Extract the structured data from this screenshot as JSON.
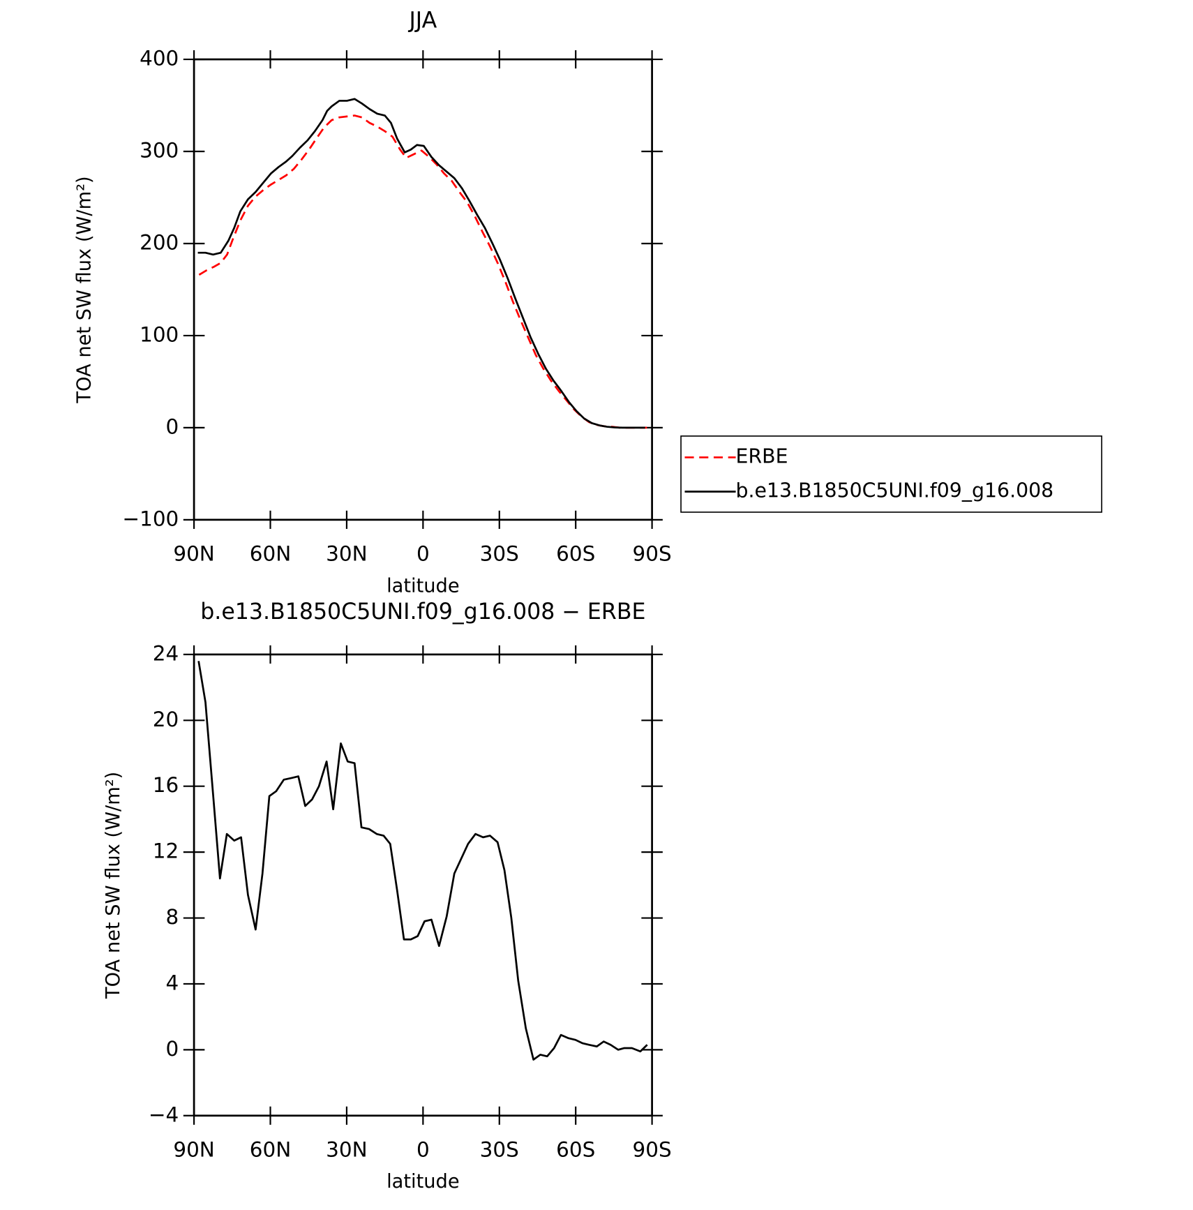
{
  "chart_data": [
    {
      "type": "line",
      "title": "JJA",
      "x_label": "latitude",
      "y_label": "TOA net SW flux (W/m²)",
      "xlim": [
        90,
        -90
      ],
      "ylim": [
        -100,
        400
      ],
      "xticks": [
        {
          "value": 90,
          "label": "90N"
        },
        {
          "value": 60,
          "label": "60N"
        },
        {
          "value": 30,
          "label": "30N"
        },
        0,
        {
          "value": -30,
          "label": "30S"
        },
        {
          "value": -60,
          "label": "60S"
        },
        {
          "value": -90,
          "label": "90S"
        }
      ],
      "yticks": [
        {
          "value": -100,
          "label": "−100"
        },
        0,
        100,
        200,
        300,
        400
      ],
      "legend": "outside-right",
      "series": [
        {
          "name": "ERBE",
          "color": "#ff0000",
          "line_style": "dashed",
          "x": [
            88,
            85,
            82,
            79.5,
            77,
            74.7,
            71.8,
            68.8,
            65.8,
            62.8,
            59.8,
            56.8,
            53.8,
            50.8,
            47.8,
            44.8,
            41.9,
            38.9,
            35.9,
            32.9,
            29.9,
            26.9,
            24,
            21,
            18,
            15,
            12,
            9,
            6.6,
            3.6,
            0.6,
            -2.4,
            -5.3,
            -8.3,
            -11.3,
            -14.3,
            -17.3,
            -20.3,
            -23.3,
            -26.3,
            -29.3,
            -32.3,
            -35.3,
            -38.3,
            -41.3,
            -44.3,
            -47.3,
            -50.3,
            -53.3,
            -56.3,
            -59.3,
            -62.3,
            -65.3,
            -68.3,
            -71.3,
            -74.3,
            -77.3,
            -80.3,
            -83.3,
            -86.3,
            -88
          ],
          "values": [
            166,
            171,
            175,
            179,
            188,
            205,
            225,
            241,
            251,
            258,
            264,
            269,
            274,
            281,
            291,
            302,
            314,
            326,
            334,
            337,
            338,
            339,
            337,
            331,
            327,
            322,
            316,
            302,
            293,
            297,
            301,
            294,
            286,
            276,
            268,
            256,
            245,
            230,
            213,
            197,
            179,
            159,
            137,
            117,
            98,
            79,
            64,
            51,
            40,
            30,
            20,
            12,
            6,
            3,
            1.5,
            1,
            0,
            0,
            0,
            0,
            0
          ]
        },
        {
          "name": "b.e13.B1850C5UNI.f09_g16.008",
          "color": "#000000",
          "line_style": "solid",
          "x": [
            88.5,
            85.5,
            82.5,
            79.5,
            76.5,
            74.2,
            71.8,
            68.8,
            65.8,
            62.8,
            59.8,
            56.8,
            53.8,
            51.4,
            48.4,
            45.4,
            42.5,
            39.5,
            37.7,
            35.9,
            32.9,
            29.9,
            26.9,
            24,
            21,
            18,
            15,
            12.6,
            10.2,
            7.2,
            4.8,
            2.4,
            -0.3,
            -3.3,
            -6.3,
            -9.3,
            -12.3,
            -15.3,
            -18.3,
            -21.3,
            -24.3,
            -27.3,
            -30.3,
            -33.3,
            -36.3,
            -39.3,
            -42.3,
            -45.3,
            -48.3,
            -51.3,
            -54.3,
            -57.3,
            -60.3,
            -63.3,
            -66.3,
            -69.3,
            -72.3,
            -75.3,
            -78.3,
            -81.3,
            -84.3,
            -87.3
          ],
          "values": [
            190,
            190,
            188,
            190,
            203,
            217,
            235,
            248,
            256,
            266,
            276,
            283,
            289,
            295,
            304,
            312,
            322,
            334,
            344,
            349,
            355,
            355,
            357,
            352,
            346,
            341,
            339,
            331,
            314,
            299,
            302,
            307,
            306,
            294,
            285,
            278,
            271,
            260,
            246,
            231,
            217,
            200,
            182,
            162,
            140,
            119,
            98,
            80,
            64,
            51,
            40,
            28,
            18,
            10,
            5,
            2.5,
            1,
            0.3,
            0,
            0,
            0,
            0
          ]
        }
      ]
    },
    {
      "type": "line",
      "title": "b.e13.B1850C5UNI.f09_g16.008 − ERBE",
      "x_label": "latitude",
      "y_label": "TOA net SW flux (W/m²)",
      "xlim": [
        90,
        -90
      ],
      "ylim": [
        -4,
        24
      ],
      "xticks": [
        {
          "value": 90,
          "label": "90N"
        },
        {
          "value": 60,
          "label": "60N"
        },
        {
          "value": 30,
          "label": "30N"
        },
        0,
        {
          "value": -30,
          "label": "30S"
        },
        {
          "value": -60,
          "label": "60S"
        },
        {
          "value": -90,
          "label": "90S"
        }
      ],
      "yticks": [
        {
          "value": -4,
          "label": "−4"
        },
        0,
        4,
        8,
        12,
        16,
        20,
        24
      ],
      "series": [
        {
          "color": "#000000",
          "line_style": "solid",
          "x": [
            88.2,
            85.5,
            82.5,
            79.8,
            77.1,
            74.2,
            71.5,
            68.8,
            65.8,
            63.1,
            60.4,
            57.7,
            54.7,
            51.7,
            49,
            46.3,
            43.6,
            40.9,
            37.9,
            35.3,
            32.3,
            29.6,
            26.9,
            24.2,
            21.2,
            18.2,
            15.5,
            12.9,
            10.2,
            7.5,
            4.8,
            2.1,
            -0.6,
            -3.3,
            -6.3,
            -9.3,
            -12.3,
            -15,
            -17.7,
            -20.6,
            -23.6,
            -26.3,
            -29.3,
            -32,
            -34.7,
            -37.4,
            -40.4,
            -43.4,
            -46.1,
            -48.8,
            -51.5,
            -54.2,
            -57.2,
            -59.9,
            -62.6,
            -65.3,
            -68.3,
            -71,
            -73.7,
            -76.7,
            -79.1,
            -82.1,
            -85.4,
            -88.1
          ],
          "values": [
            23.6,
            21.1,
            15.5,
            10.4,
            13.1,
            12.7,
            12.9,
            9.4,
            7.3,
            10.7,
            15.4,
            15.7,
            16.4,
            16.5,
            16.6,
            14.8,
            15.2,
            16,
            17.5,
            14.6,
            18.6,
            17.5,
            17.4,
            13.5,
            13.4,
            13.1,
            13,
            12.5,
            9.7,
            6.7,
            6.7,
            6.9,
            7.8,
            7.9,
            6.3,
            8.1,
            10.7,
            11.6,
            12.5,
            13.1,
            12.9,
            13,
            12.6,
            10.9,
            8,
            4.2,
            1.3,
            -0.6,
            -0.3,
            -0.4,
            0.1,
            0.9,
            0.7,
            0.6,
            0.4,
            0.3,
            0.2,
            0.5,
            0.3,
            0,
            0.1,
            0.1,
            -0.1,
            0.3
          ]
        }
      ]
    }
  ]
}
